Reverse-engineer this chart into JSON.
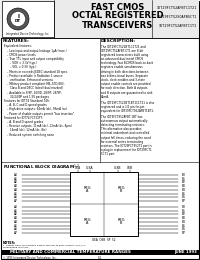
{
  "title_line1": "FAST CMOS",
  "title_line2": "OCTAL REGISTERED",
  "title_line3": "TRANSCEIVERS",
  "part_numbers": [
    "IDT29FCT52AFBTC1T21",
    "IDT29FCT52SOAFBSCT1",
    "IDT29FCT52AFBTC1T1"
  ],
  "logo_text": "Integrated Device Technology, Inc.",
  "features_title": "FEATURES:",
  "description_title": "DESCRIPTION:",
  "functional_block_title": "FUNCTIONAL BLOCK DIAGRAM",
  "footer_bar_text": "MILITARY AND COMMERCIAL TEMPERATURE RANGES",
  "footer_date": "JUNE 1993",
  "footer_company": "© 1993 Integrated Device Technology, Inc.",
  "footer_page": "8-1",
  "bg_color": "#ffffff",
  "border_color": "#000000"
}
